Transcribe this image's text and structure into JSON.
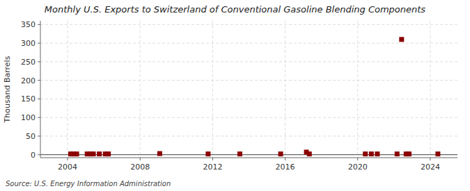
{
  "chart_data": {
    "type": "scatter",
    "title": "Monthly U.S. Exports to Switzerland of Conventional Gasoline Blending Components",
    "ylabel": "Thousand Barrels",
    "annotations": [
      "Source: U.S. Energy Information Administration"
    ],
    "x": [
      2004.17,
      2004.33,
      2004.5,
      2005.08,
      2005.25,
      2005.42,
      2005.75,
      2006.08,
      2006.25,
      2009.08,
      2011.75,
      2013.5,
      2015.75,
      2017.17,
      2017.33,
      2020.42,
      2020.75,
      2021.08,
      2022.17,
      2022.42,
      2022.67,
      2022.83,
      2024.42
    ],
    "values": [
      2,
      2,
      2,
      2,
      2,
      2,
      2,
      2,
      2,
      3,
      2,
      2,
      2,
      7,
      2,
      2,
      2,
      2,
      2,
      310,
      2,
      2,
      2
    ],
    "color": "#8b0000",
    "marker": "square",
    "xlim": [
      2002.5,
      2025.5
    ],
    "ylim": [
      -8,
      360
    ],
    "xticks": [
      2004,
      2008,
      2012,
      2016,
      2020,
      2024
    ],
    "yticks": [
      0,
      50,
      100,
      150,
      200,
      250,
      300,
      350
    ],
    "grid": true
  }
}
